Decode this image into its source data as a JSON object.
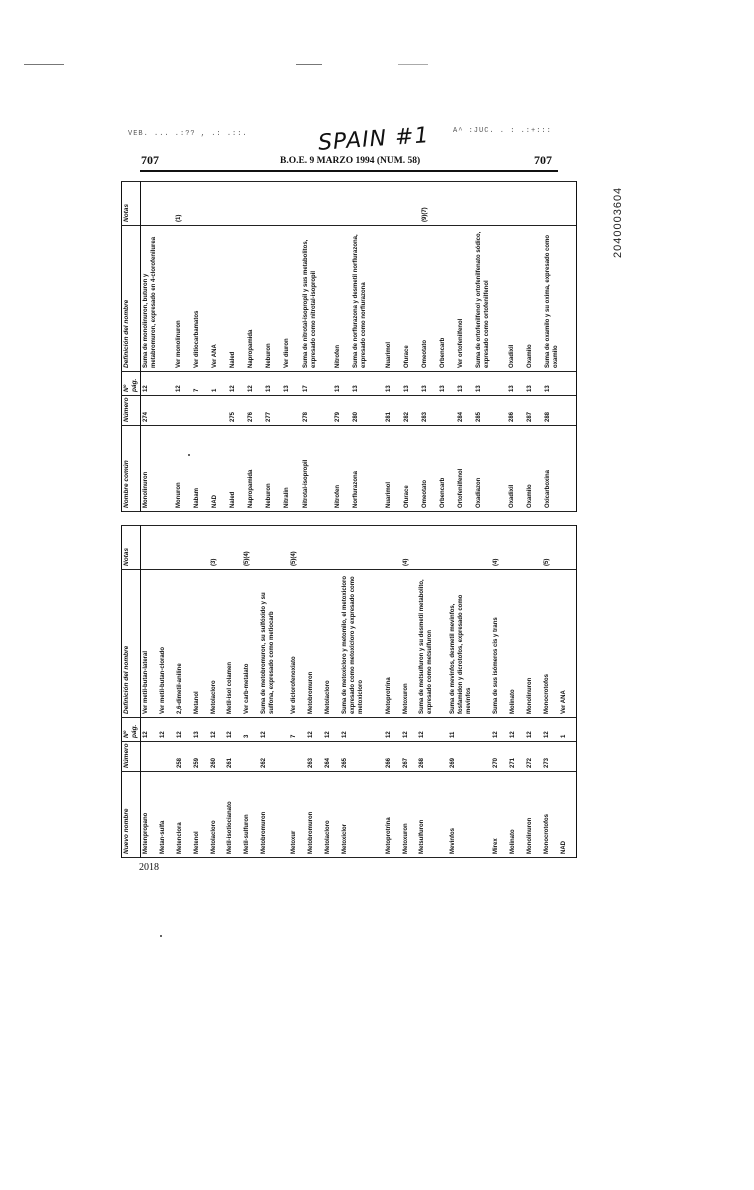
{
  "fax_header": {
    "left": "VEB. ... .:?? , .: .::.",
    "right": "A^ :JUC. . : .:+:::"
  },
  "handwritten_note": "SPAIN #1",
  "document_id": "2040003604",
  "header": {
    "page_left": "707",
    "page_right": "707",
    "center": "B.O.E. 9 MARZO 1994 (NUM. 58)"
  },
  "footer": {
    "page_number": "2018"
  },
  "left_table": {
    "headers": [
      "Nuevo nombre",
      "Número",
      "Nº pág.",
      "Definición del nombre",
      "Notas"
    ],
    "rows": [
      [
        "Metenpropano",
        "",
        "12",
        "Ver metil-butan-lateral",
        ""
      ],
      [
        "Metan-sulfa",
        "",
        "12",
        "Ver metil-butan-clorado",
        ""
      ],
      [
        "Metenclora",
        "258",
        "12",
        "2,6-dimetil-aniline",
        ""
      ],
      [
        "Metenol",
        "259",
        "13",
        "Metanol",
        ""
      ],
      [
        "Metolacloro",
        "260",
        "12",
        "Metolacloro",
        "(3)"
      ],
      [
        "Metil-isotiocianato",
        "261",
        "12",
        "Metil-isol colamen",
        ""
      ],
      [
        "Metil-sulfuron",
        "",
        "3",
        "Ver carb-metalato",
        "(5)(4)"
      ],
      [
        "Metobromuron",
        "262",
        "12",
        "Suma de metobromuron, su sulfóxido y su sulfona, expresado como metiocarb",
        ""
      ],
      [
        "Metoxur",
        "",
        "7",
        "Ver diclorofenoxiato",
        "(5)(4)"
      ],
      [
        "Metobromuron",
        "263",
        "12",
        "Metobromuron",
        ""
      ],
      [
        "Metolacloro",
        "264",
        "12",
        "Metolacloro",
        ""
      ],
      [
        "Metoxiclor",
        "265",
        "12",
        "Suma de metoxicloro y metomilo, el metoxicloro expresado como metoxicloro y expresado como metoxicloro",
        ""
      ],
      [
        "Metoprotrina",
        "266",
        "12",
        "Metoprotrina",
        ""
      ],
      [
        "Metoxuron",
        "267",
        "12",
        "Metoxuron",
        "(4)"
      ],
      [
        "Metsulfuron",
        "268",
        "12",
        "Suma de metsulfuron y su desmetil metabolito, expresado como metsulfuron",
        ""
      ],
      [
        "Mevinfos",
        "269",
        "11",
        "Suma de mevinfos, desmetil mevinfos, fosfamidon y dicrotofos, expresado como mevinfos",
        ""
      ],
      [
        "Mirex",
        "270",
        "12",
        "Suma de sus isómeros cis y trans",
        "(4)"
      ],
      [
        "Molinato",
        "271",
        "12",
        "Molinato",
        ""
      ],
      [
        "Monolinuron",
        "272",
        "12",
        "Monolinuron",
        ""
      ],
      [
        "Monocrotofos",
        "273",
        "12",
        "Monocrotofos",
        "(5)"
      ],
      [
        "NAD",
        "",
        "1",
        "Ver ANA",
        ""
      ]
    ]
  },
  "right_table": {
    "headers": [
      "Nombre común",
      "Número",
      "Nº pág.",
      "Definición del nombre",
      "Notas"
    ],
    "rows": [
      [
        "Monolinuron",
        "274",
        "12",
        "Suma de monolinuron, buturon y metabromuron, expresado en 4-clorofenilurea",
        ""
      ],
      [
        "Monuron",
        "",
        "12",
        "Ver monolinuron",
        "(1)"
      ],
      [
        "Nabam",
        "",
        "7",
        "Ver ditiocarbamatos",
        ""
      ],
      [
        "NAD",
        "",
        "1",
        "Ver ANA",
        ""
      ],
      [
        "Naled",
        "275",
        "12",
        "Naled",
        ""
      ],
      [
        "Napropamida",
        "276",
        "12",
        "Napropamida",
        ""
      ],
      [
        "Neburon",
        "277",
        "13",
        "Neburon",
        ""
      ],
      [
        "Nitralin",
        "",
        "13",
        "Ver diuron",
        ""
      ],
      [
        "Nitrotal-isopropil",
        "278",
        "17",
        "Suma de nitrotal-isopropil y sus metabolitos, expresado como nitrotal-isopropil",
        ""
      ],
      [
        "Nitrofen",
        "279",
        "13",
        "Nitrofen",
        ""
      ],
      [
        "Norflurazona",
        "280",
        "13",
        "Suma de norflurazona y desmetil norflurazona, expresado como norflurazona",
        ""
      ],
      [
        "Nuarimol",
        "281",
        "13",
        "Nuarimol",
        ""
      ],
      [
        "Ofurace",
        "282",
        "13",
        "Ofurace",
        ""
      ],
      [
        "Omeotato",
        "283",
        "13",
        "Omeotato",
        "(9)(7)"
      ],
      [
        "Orbencarb",
        "",
        "13",
        "Orbencarb",
        ""
      ],
      [
        "Ortofenilfenol",
        "284",
        "13",
        "Ver ortofenilfenol",
        ""
      ],
      [
        "Oxadiazon",
        "285",
        "13",
        "Suma de ortofenilfenol y ortofenilfenato sódico, expresado como ortofenilfenol",
        ""
      ],
      [
        "Oxadixil",
        "286",
        "13",
        "Oxadixil",
        ""
      ],
      [
        "Oxamilo",
        "287",
        "13",
        "Oxamilo",
        ""
      ],
      [
        "Oxicarboxina",
        "288",
        "13",
        "Suma de oxamilo y su oxima, expresado como oxamilo",
        ""
      ]
    ]
  }
}
